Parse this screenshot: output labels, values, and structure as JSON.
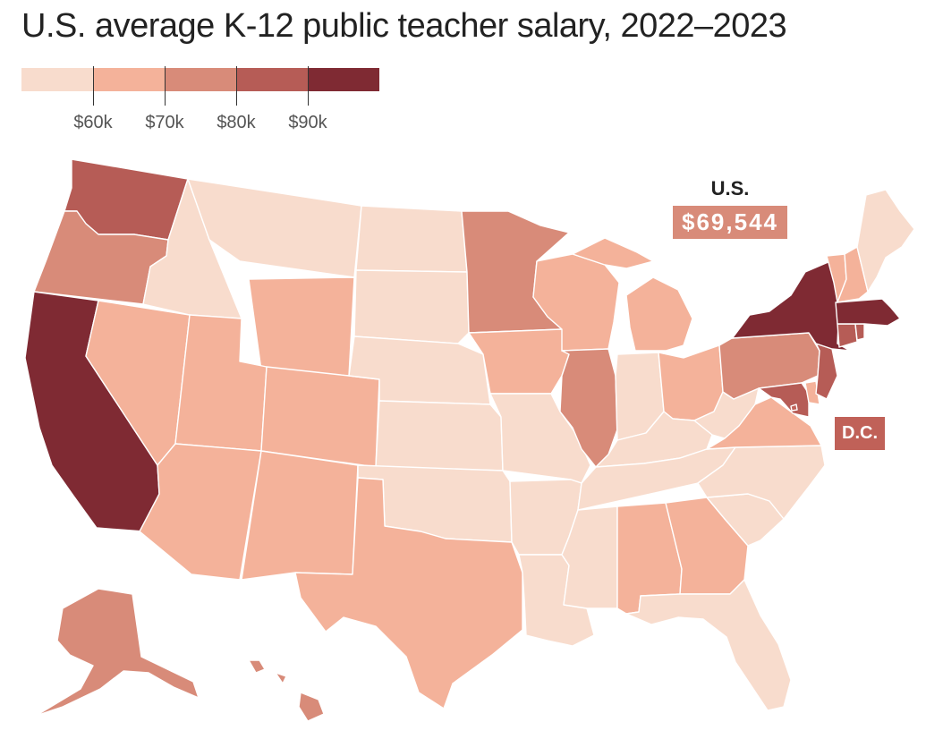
{
  "title": "U.S. average K-12 public teacher salary, 2022–2023",
  "legend": {
    "bins": [
      {
        "color": "#f8dccd"
      },
      {
        "color": "#f4b29a"
      },
      {
        "color": "#d88b79"
      },
      {
        "color": "#b65c56"
      },
      {
        "color": "#7f2a33"
      }
    ],
    "tick_labels": [
      "$60k",
      "$70k",
      "$80k",
      "$90k"
    ]
  },
  "us_average": {
    "label": "U.S.",
    "value": "$69,544"
  },
  "dc": {
    "label": "D.C."
  },
  "state_shading": {
    "WA": "#b65c56",
    "OR": "#d88b79",
    "CA": "#7f2a33",
    "NV": "#f4b29a",
    "ID": "#f8dccd",
    "MT": "#f8dccd",
    "WY": "#f4b29a",
    "UT": "#f4b29a",
    "AZ": "#f4b29a",
    "CO": "#f4b29a",
    "NM": "#f4b29a",
    "ND": "#f8dccd",
    "SD": "#f8dccd",
    "NE": "#f8dccd",
    "KS": "#f8dccd",
    "OK": "#f8dccd",
    "TX": "#f4b29a",
    "MN": "#d88b79",
    "IA": "#f4b29a",
    "MO": "#f8dccd",
    "AR": "#f8dccd",
    "LA": "#f8dccd",
    "WI": "#f4b29a",
    "IL": "#d88b79",
    "MI": "#f4b29a",
    "IN": "#f8dccd",
    "OH": "#f4b29a",
    "KY": "#f8dccd",
    "TN": "#f8dccd",
    "MS": "#f8dccd",
    "AL": "#f4b29a",
    "GA": "#f4b29a",
    "FL": "#f8dccd",
    "SC": "#f8dccd",
    "NC": "#f8dccd",
    "VA": "#f4b29a",
    "WV": "#f8dccd",
    "PA": "#d88b79",
    "NY": "#7f2a33",
    "VT": "#f4b29a",
    "NH": "#f4b29a",
    "ME": "#f8dccd",
    "MA": "#7f2a33",
    "RI": "#b65c56",
    "CT": "#b65c56",
    "NJ": "#b65c56",
    "DE": "#f4b29a",
    "MD": "#b65c56",
    "DC": "#c06158",
    "AK": "#d88b79",
    "HI": "#d88b79"
  }
}
